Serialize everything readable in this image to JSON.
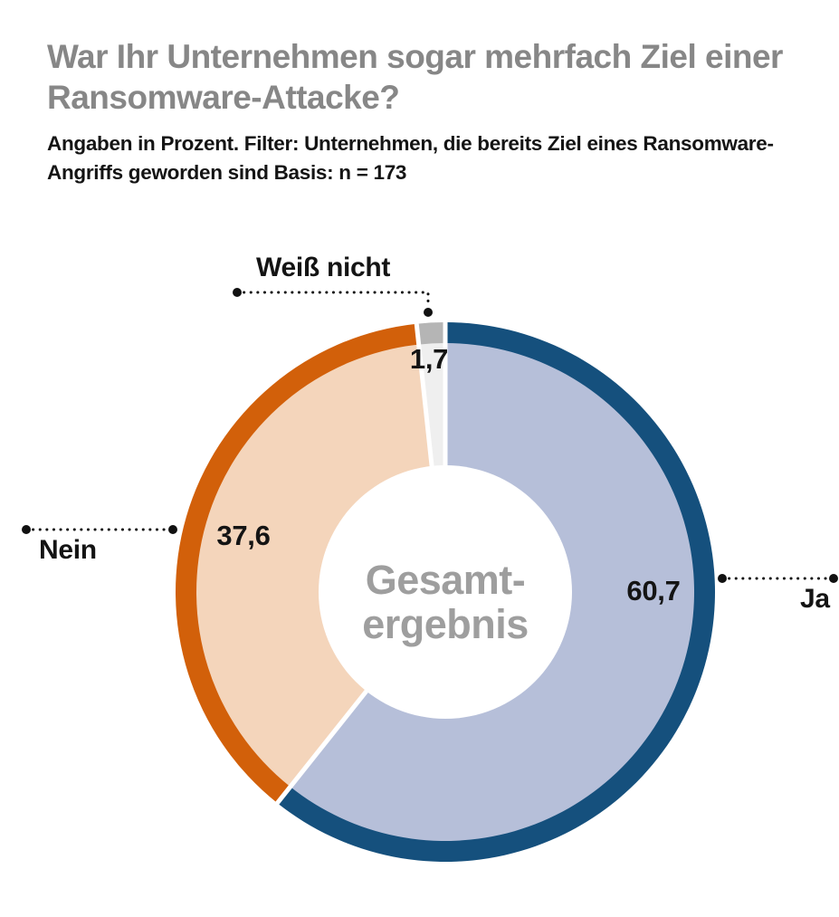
{
  "header": {
    "title_lines": [
      "War Ihr Unternehmen sogar mehrfach Ziel einer",
      "Ransomware-Attacke?"
    ],
    "subtitle_lines": [
      "Angaben in Prozent. Filter: Unternehmen, die bereits Ziel eines Ransomware-",
      "Angriffs geworden sind Basis: n = 173"
    ]
  },
  "donut": {
    "center_label_lines": [
      "Gesamt-",
      "ergebnis"
    ]
  },
  "colors": {
    "title_gray": "#878787",
    "text_black": "#141414",
    "center_gray": "#9e9e9e",
    "leader_black": "#111111",
    "separator_white": "#ffffff",
    "background": "#ffffff"
  },
  "chart_data": {
    "type": "pie",
    "subtype": "donut",
    "title": "War Ihr Unternehmen sogar mehrfach Ziel einer Ransomware-Attacke?",
    "units": "percent",
    "basis": "n = 173",
    "center_label": "Gesamt-ergebnis",
    "start_angle": "12-oclock",
    "direction": "clockwise",
    "legend_position": "callout-labels",
    "slices": [
      {
        "label": "Ja",
        "value": 60.7,
        "value_label": "60,7",
        "ring_color": "#15507d",
        "fill_color": "#b6bfd9"
      },
      {
        "label": "Nein",
        "value": 37.6,
        "value_label": "37,6",
        "ring_color": "#d2600a",
        "fill_color": "#f4d5bb"
      },
      {
        "label": "Weiß nicht",
        "value": 1.7,
        "value_label": "1,7",
        "ring_color": "#b5b5b5",
        "fill_color": "#efefef"
      }
    ]
  }
}
